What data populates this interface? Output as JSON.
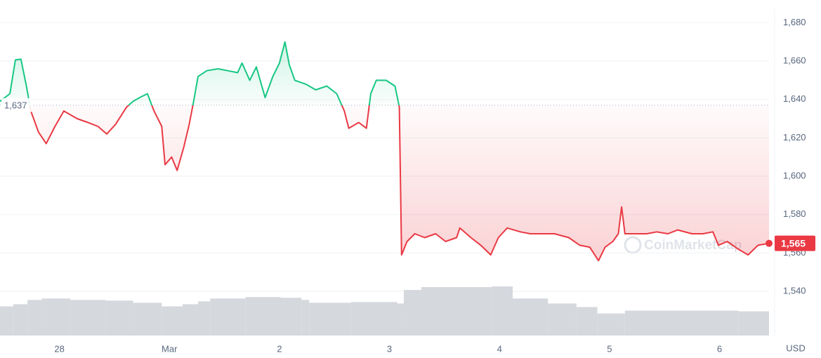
{
  "chart_data": {
    "type": "line",
    "x": [
      -0.54,
      -0.45,
      -0.4,
      -0.35,
      -0.3,
      -0.26,
      -0.19,
      -0.12,
      -0.04,
      0.04,
      0.16,
      0.26,
      0.35,
      0.43,
      0.51,
      0.61,
      0.67,
      0.73,
      0.8,
      0.86,
      0.93,
      0.96,
      1.02,
      1.07,
      1.13,
      1.18,
      1.22,
      1.26,
      1.34,
      1.44,
      1.53,
      1.62,
      1.66,
      1.73,
      1.79,
      1.87,
      1.94,
      2.0,
      2.05,
      2.09,
      2.14,
      2.24,
      2.33,
      2.43,
      2.52,
      2.59,
      2.63,
      2.72,
      2.79,
      2.83,
      2.88,
      2.97,
      3.05,
      3.09,
      3.11,
      3.16,
      3.23,
      3.32,
      3.42,
      3.51,
      3.61,
      3.64,
      3.74,
      3.83,
      3.92,
      3.99,
      4.07,
      4.19,
      4.28,
      4.38,
      4.5,
      4.63,
      4.73,
      4.82,
      4.9,
      4.96,
      5.03,
      5.08,
      5.11,
      5.14,
      5.24,
      5.34,
      5.43,
      5.53,
      5.62,
      5.75,
      5.85,
      5.94,
      5.99,
      6.07,
      6.17,
      6.26,
      6.35,
      6.45
    ],
    "values": [
      1639,
      1643,
      1660.6,
      1661,
      1647,
      1634,
      1623,
      1617,
      1626,
      1634,
      1630,
      1628,
      1626,
      1622,
      1627,
      1636,
      1639,
      1641,
      1643,
      1634,
      1626,
      1606,
      1610,
      1603,
      1615,
      1627,
      1639,
      1652,
      1655,
      1656,
      1655,
      1654,
      1659,
      1650,
      1657,
      1641,
      1652,
      1659,
      1670,
      1658,
      1650,
      1648,
      1645,
      1647,
      1643,
      1634,
      1625,
      1628,
      1625,
      1643,
      1650,
      1650,
      1647,
      1636,
      1559,
      1566,
      1570,
      1568,
      1570,
      1566,
      1568,
      1573,
      1568,
      1564,
      1559,
      1568,
      1573,
      1571,
      1570,
      1570,
      1570,
      1568,
      1564,
      1563,
      1556,
      1563,
      1566,
      1570,
      1584,
      1570,
      1570,
      1570,
      1571,
      1570,
      1572,
      1570,
      1570,
      1571,
      1564,
      1566,
      1562,
      1559,
      1564,
      1565
    ],
    "up_color": "#16c784",
    "down_color": "#ea3943",
    "baseline": {
      "value": 1637,
      "label": "1,637"
    },
    "last_price": {
      "value": 1565,
      "label": "1,565"
    },
    "xlim": [
      -0.54,
      6.45
    ],
    "xticks": [
      {
        "value": 0,
        "label": "28"
      },
      {
        "value": 1,
        "label": "Mar"
      },
      {
        "value": 2,
        "label": "2"
      },
      {
        "value": 3,
        "label": "3"
      },
      {
        "value": 4,
        "label": "4"
      },
      {
        "value": 5,
        "label": "5"
      },
      {
        "value": 6,
        "label": "6"
      }
    ],
    "ylim": [
      1525,
      1686
    ],
    "yticks": [
      {
        "value": 1540,
        "label": "1,540"
      },
      {
        "value": 1560,
        "label": "1,560"
      },
      {
        "value": 1580,
        "label": "1,580"
      },
      {
        "value": 1600,
        "label": "1,600"
      },
      {
        "value": 1620,
        "label": "1,620"
      },
      {
        "value": 1640,
        "label": "1,640"
      },
      {
        "value": 1660,
        "label": "1,660"
      },
      {
        "value": 1680,
        "label": "1,680"
      }
    ],
    "grid": true,
    "currency": "USD",
    "watermark": "CoinMarketCap",
    "volume": {
      "color": "#d5d8dd",
      "x": [
        -0.54,
        -0.42,
        -0.29,
        -0.16,
        0.1,
        0.42,
        0.67,
        0.93,
        1.12,
        1.26,
        1.37,
        1.69,
        2.01,
        2.2,
        2.27,
        2.65,
        3.07,
        3.13,
        3.29,
        3.93,
        4.12,
        4.44,
        4.7,
        4.89,
        5.08,
        5.14,
        5.85,
        6.17
      ],
      "values": [
        41,
        44,
        50,
        52,
        50,
        49,
        46,
        41,
        44,
        48,
        52,
        54,
        53,
        50,
        46,
        47,
        45,
        64,
        68,
        69,
        52,
        45,
        40,
        31,
        31,
        35,
        35,
        34
      ]
    }
  }
}
